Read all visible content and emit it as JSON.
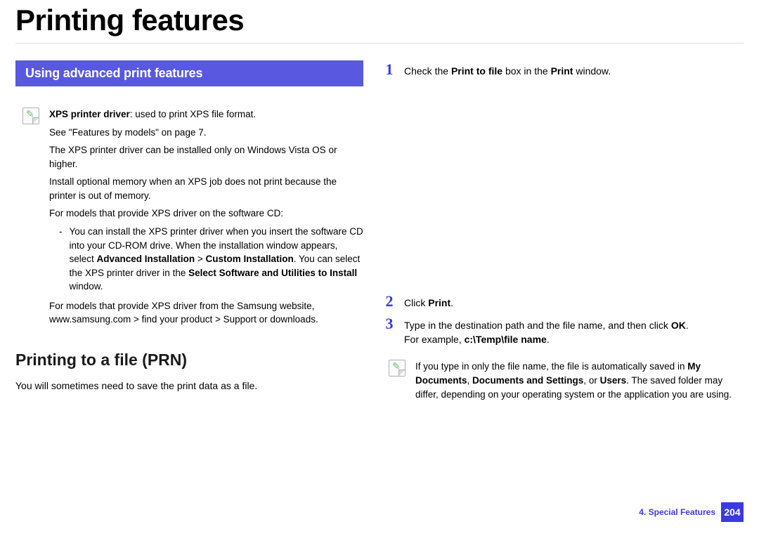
{
  "colors": {
    "accent": "#3a3ae0",
    "bar_bg": "#5858e0",
    "bar_text": "#ffffff",
    "note_icon_pencil": "#6cbf6c",
    "divider": "#dcdcdc",
    "page_bg": "#ffffff",
    "text": "#000000"
  },
  "page": {
    "title": "Printing features",
    "section_bar": "Using advanced print features",
    "subheading": "Printing to a file (PRN)",
    "sub_body": "You will sometimes need to save the print data as a file.",
    "footer_label": "4.  Special Features",
    "footer_page": "204"
  },
  "note_left": {
    "lines": [
      {
        "html": "<span class=\"bold\">XPS printer driver</span>: used to print XPS file format."
      },
      {
        "html": "See \"Features by models\" on page 7."
      },
      {
        "html": "The XPS printer driver can be installed only on Windows Vista OS or higher."
      },
      {
        "html": "Install optional memory when an XPS job does not print because the printer is out of memory."
      },
      {
        "html": "For models that provide XPS driver on the software CD:"
      }
    ],
    "sub": {
      "html": "You can install the XPS printer driver when you insert the software CD into your CD-ROM drive. When the installation window appears, select <span class=\"bold\">Advanced Installation</span> > <span class=\"bold\">Custom Installation</span>. You can select the XPS printer driver in the <span class=\"bold\">Select Software and Utilities to Install</span> window."
    },
    "last": {
      "html": "For models that provide XPS driver from the Samsung website, www.samsung.com > find your product > Support or downloads."
    }
  },
  "steps": [
    {
      "num": "1",
      "html": "Check the <span class=\"bold\">Print to file</span> box in the <span class=\"bold\">Print</span> window."
    },
    {
      "num": "2",
      "html": "Click <span class=\"bold\">Print</span>."
    },
    {
      "num": "3",
      "html": "Type in the destination path and the file name, and then click <span class=\"bold\">OK</span>.<br>For example, <span class=\"bold\">c:\\Temp\\file name</span>."
    }
  ],
  "note_right": {
    "html": "If you type in only the file name, the file is automatically saved in <span class=\"bold\">My Documents</span>, <span class=\"bold\">Documents and Settings</span>, or <span class=\"bold\">Users</span>. The saved folder may differ, depending on your operating system or the application you are using."
  }
}
